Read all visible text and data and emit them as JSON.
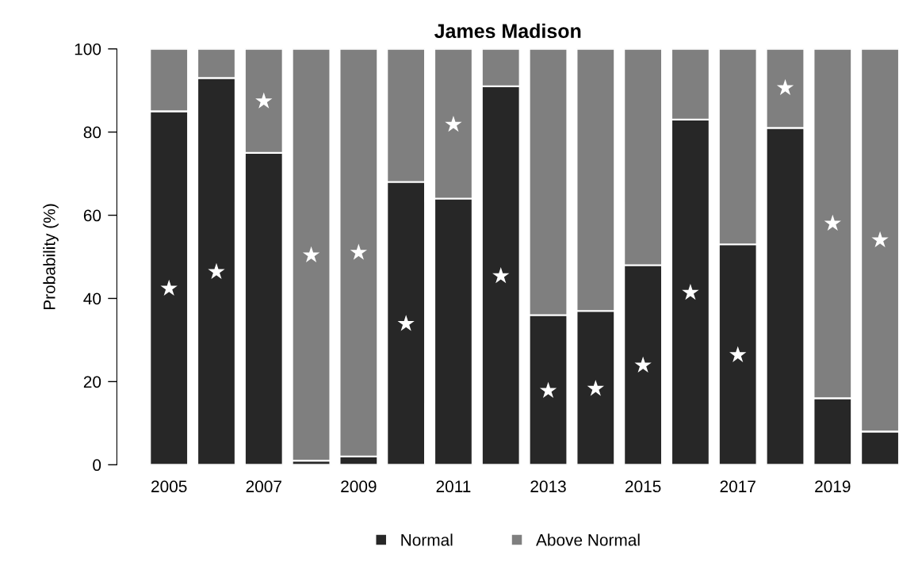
{
  "chart_data": {
    "type": "bar",
    "title": "James Madison",
    "ylabel": "Probability (%)",
    "categories": [
      "2005",
      null,
      "2007",
      null,
      "2009",
      null,
      "2011",
      null,
      "2013",
      null,
      "2015",
      null,
      "2017",
      null,
      "2019",
      null
    ],
    "stacked": true,
    "series": [
      {
        "name": "Normal",
        "color": "#272727",
        "values": [
          85,
          93,
          75,
          1,
          2,
          68,
          64,
          91,
          36,
          37,
          48,
          83,
          53,
          81,
          16,
          8
        ]
      },
      {
        "name": "Above Normal",
        "color": "#7f7f7f",
        "values": [
          15,
          7,
          25,
          99,
          98,
          32,
          36,
          9,
          64,
          63,
          52,
          17,
          47,
          19,
          84,
          92
        ]
      },
      {
        "type": "scatter",
        "color": "#ffffff",
        "marker": "star",
        "values": [
          42.4,
          46.4,
          87.4,
          50.4,
          51,
          33.9,
          81.8,
          45.4,
          17.8,
          18.3,
          23.9,
          41.4,
          26.4,
          90.6,
          58,
          54
        ]
      }
    ],
    "ylim": [
      0,
      100
    ],
    "yticks": [
      0,
      20,
      40,
      60,
      80,
      100
    ],
    "grid": false,
    "legend": "bottom"
  }
}
